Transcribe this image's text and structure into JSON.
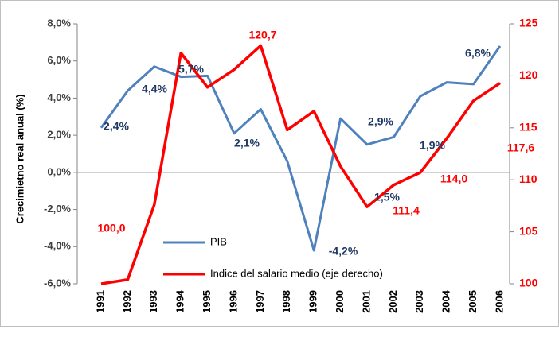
{
  "chart_data": {
    "type": "line",
    "categories": [
      "1991",
      "1992",
      "1993",
      "1994",
      "1995",
      "1996",
      "1997",
      "1998",
      "1999",
      "2000",
      "2001",
      "2002",
      "2003",
      "2004",
      "2005",
      "2006"
    ],
    "y_label": "Crecimietno real anual (%)",
    "ylim": [
      -6,
      8
    ],
    "yticks": [
      {
        "value": -6,
        "label": "-6,0%"
      },
      {
        "value": -4,
        "label": "-4,0%"
      },
      {
        "value": -2,
        "label": "-2,0%"
      },
      {
        "value": 0,
        "label": "0,0%"
      },
      {
        "value": 2,
        "label": "2,0%"
      },
      {
        "value": 4,
        "label": "4,0%"
      },
      {
        "value": 6,
        "label": "6,0%"
      },
      {
        "value": 8,
        "label": "8,0%"
      }
    ],
    "y2lim": [
      100,
      125
    ],
    "y2ticks": [
      100,
      105,
      110,
      115,
      120,
      125
    ],
    "series": [
      {
        "name": "PIB",
        "color": "#4f81bd",
        "values": [
          2.4,
          4.4,
          5.7,
          5.15,
          5.2,
          2.1,
          3.4,
          0.6,
          -4.2,
          2.9,
          1.5,
          1.9,
          4.1,
          4.85,
          4.75,
          6.8
        ]
      },
      {
        "name": "Indice del salario medio (eje derecho)",
        "color": "#ff0000",
        "axis": "y2",
        "values": [
          100.0,
          100.4,
          107.6,
          122.2,
          118.9,
          120.6,
          122.9,
          114.8,
          116.6,
          111.3,
          107.4,
          109.5,
          110.7,
          114.0,
          117.6,
          119.3
        ]
      }
    ],
    "annotations": [
      {
        "text": "2,4%",
        "series": "PIB"
      },
      {
        "text": "4,4%",
        "series": "PIB"
      },
      {
        "text": "5,7%",
        "series": "PIB"
      },
      {
        "text": "2,1%",
        "series": "PIB"
      },
      {
        "text": "-4,2%",
        "series": "PIB"
      },
      {
        "text": "2,9%",
        "series": "PIB"
      },
      {
        "text": "1,5%",
        "series": "PIB"
      },
      {
        "text": "1,9%",
        "series": "PIB"
      },
      {
        "text": "6,8%",
        "series": "PIB"
      },
      {
        "text": "100,0",
        "series": "Indice del salario medio (eje derecho)"
      },
      {
        "text": "120,7",
        "series": "Indice del salario medio (eje derecho)"
      },
      {
        "text": "111,4",
        "series": "Indice del salario medio (eje derecho)"
      },
      {
        "text": "114,0",
        "series": "Indice del salario medio (eje derecho)"
      },
      {
        "text": "117,6",
        "series": "Indice del salario medio (eje derecho)"
      }
    ]
  }
}
